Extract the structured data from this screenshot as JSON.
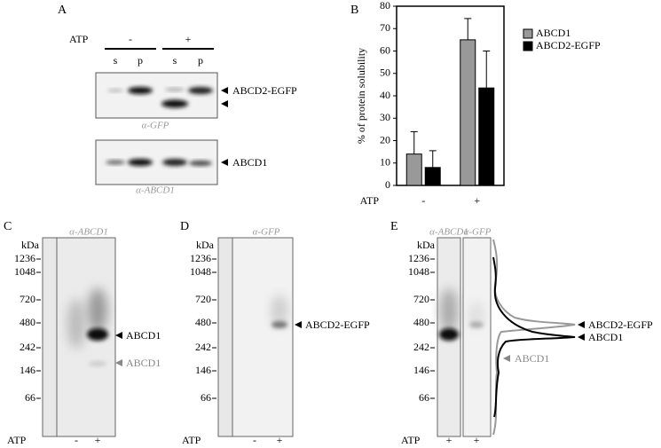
{
  "figure": {
    "panel_labels": [
      "A",
      "B",
      "C",
      "D",
      "E"
    ],
    "panel_a": {
      "atp_label": "ATP",
      "atp_conditions": [
        "-",
        "+"
      ],
      "lanes": [
        "s",
        "p",
        "s",
        "p"
      ],
      "blots": [
        {
          "antibody": "α-GFP",
          "band_label": "ABCD2-EGFP"
        },
        {
          "antibody": "α-ABCD1",
          "band_label": "ABCD1"
        }
      ]
    },
    "panel_c": {
      "antibody": "α-ABCD1",
      "kda_label": "kDa",
      "markers": [
        1236,
        1048,
        720,
        480,
        242,
        146,
        66
      ],
      "atp_label": "ATP",
      "lanes": [
        "-",
        "+"
      ],
      "band_label": "ABCD1",
      "minor_band_label": "ABCD1"
    },
    "panel_d": {
      "antibody": "α-GFP",
      "kda_label": "kDa",
      "markers": [
        1236,
        1048,
        720,
        480,
        242,
        146,
        66
      ],
      "atp_label": "ATP",
      "lanes": [
        "-",
        "+"
      ],
      "band_label": "ABCD2-EGFP"
    },
    "panel_e": {
      "antibodies": [
        "α-ABCD1",
        "α-GFP"
      ],
      "kda_label": "kDa",
      "markers": [
        1236,
        1048,
        720,
        480,
        242,
        146,
        66
      ],
      "atp_label": "ATP",
      "lanes": [
        "+",
        "+"
      ],
      "band_labels": [
        "ABCD2-EGFP",
        "ABCD1"
      ],
      "minor_band_label": "ABCD1"
    }
  },
  "chart_data": {
    "type": "bar",
    "y_label": "% of protein solubility",
    "x_label": "ATP",
    "categories": [
      "-",
      "+"
    ],
    "series": [
      {
        "name": "ABCD1",
        "color": "#999999",
        "values": [
          14,
          65
        ],
        "errors": [
          10,
          9.5
        ]
      },
      {
        "name": "ABCD2-EGFP",
        "color": "#000000",
        "values": [
          8,
          43.5
        ],
        "errors": [
          7.5,
          16.5
        ]
      }
    ],
    "ylim": [
      0,
      80
    ],
    "yticks": [
      0,
      10,
      20,
      30,
      40,
      50,
      60,
      70,
      80
    ]
  }
}
